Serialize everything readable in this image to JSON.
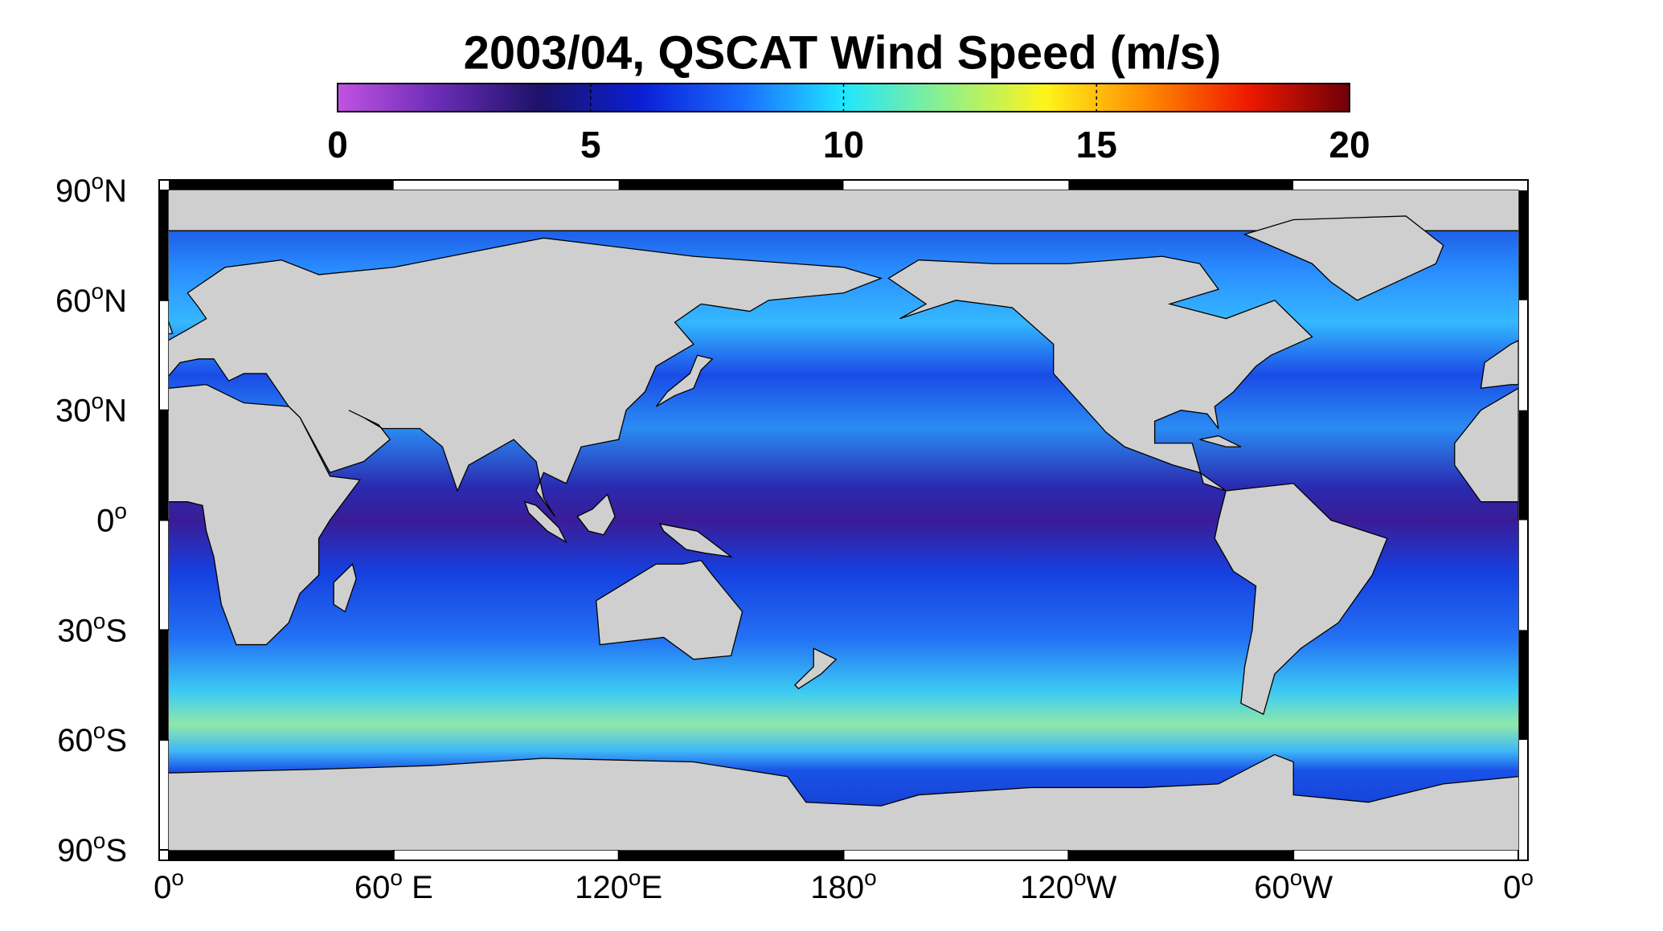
{
  "chart_data": {
    "type": "map",
    "title": "2003/04,  QSCAT Wind Speed (m/s)",
    "colorbar": {
      "lim": [
        0,
        20
      ],
      "ticks": [
        0,
        5,
        10,
        15,
        20
      ],
      "colormap": [
        "#c252e3",
        "#6a2cb4",
        "#1c1268",
        "#0a1fd6",
        "#1a6cff",
        "#1fe6ff",
        "#8ff08a",
        "#fff41a",
        "#ff8a00",
        "#f01800",
        "#6e0008"
      ]
    },
    "xlim": [
      0,
      360
    ],
    "ylim": [
      -90,
      90
    ],
    "xticks": [
      {
        "value": 0,
        "label": "0",
        "sup": "o"
      },
      {
        "value": 60,
        "label": "60",
        "sup": "o",
        "suffix": " E"
      },
      {
        "value": 120,
        "label": "120",
        "sup": "o",
        "suffix": "E"
      },
      {
        "value": 180,
        "label": "180",
        "sup": "o"
      },
      {
        "value": 240,
        "label": "120",
        "sup": "o",
        "suffix": "W"
      },
      {
        "value": 300,
        "label": "60",
        "sup": "o",
        "suffix": "W"
      },
      {
        "value": 360,
        "label": "0",
        "sup": "o"
      }
    ],
    "yticks": [
      {
        "value": 90,
        "label": "90",
        "sup": "o",
        "suffix": "N"
      },
      {
        "value": 60,
        "label": "60",
        "sup": "o",
        "suffix": "N"
      },
      {
        "value": 30,
        "label": "30",
        "sup": "o",
        "suffix": "N"
      },
      {
        "value": 0,
        "label": "0",
        "sup": "o"
      },
      {
        "value": -30,
        "label": "30",
        "sup": "o",
        "suffix": "S"
      },
      {
        "value": -60,
        "label": "60",
        "sup": "o",
        "suffix": "S"
      },
      {
        "value": -90,
        "label": "90",
        "sup": "o",
        "suffix": "S"
      }
    ]
  }
}
